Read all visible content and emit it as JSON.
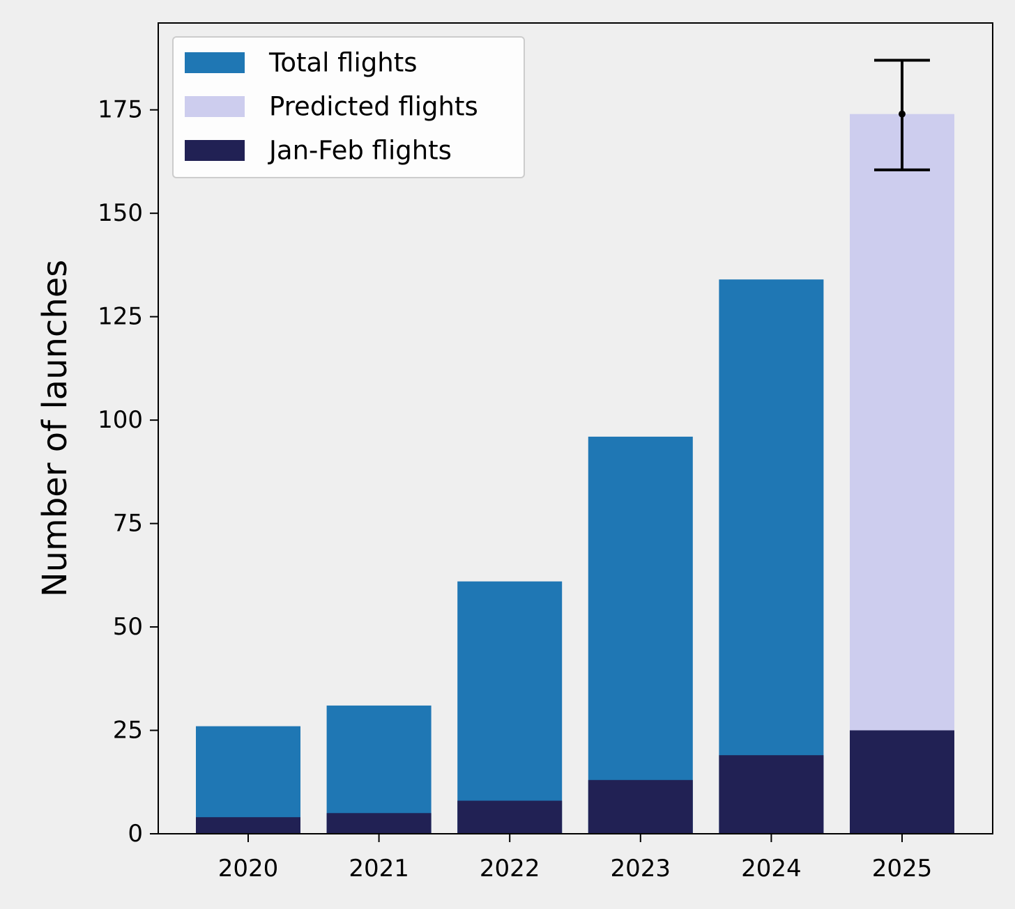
{
  "chart_data": {
    "type": "bar",
    "title": "",
    "xlabel": "",
    "ylabel": "Number of launches",
    "categories": [
      "2020",
      "2021",
      "2022",
      "2023",
      "2024",
      "2025"
    ],
    "series": [
      {
        "name": "Total flights",
        "values": [
          26,
          31,
          61,
          96,
          134,
          null
        ],
        "color": "#1f77b4"
      },
      {
        "name": "Predicted flights",
        "values": [
          null,
          null,
          null,
          null,
          null,
          174
        ],
        "color": "#cdcdee"
      },
      {
        "name": "Jan-Feb flights",
        "values": [
          4,
          5,
          8,
          13,
          19,
          25
        ],
        "color": "#212154"
      }
    ],
    "error_bar": {
      "category": "2025",
      "center": 174,
      "lower": 160.5,
      "upper": 187
    },
    "ylim": [
      0,
      196
    ],
    "yticks": [
      0,
      25,
      50,
      75,
      100,
      125,
      150,
      175
    ],
    "grid": false,
    "legend_position": "top-left"
  }
}
